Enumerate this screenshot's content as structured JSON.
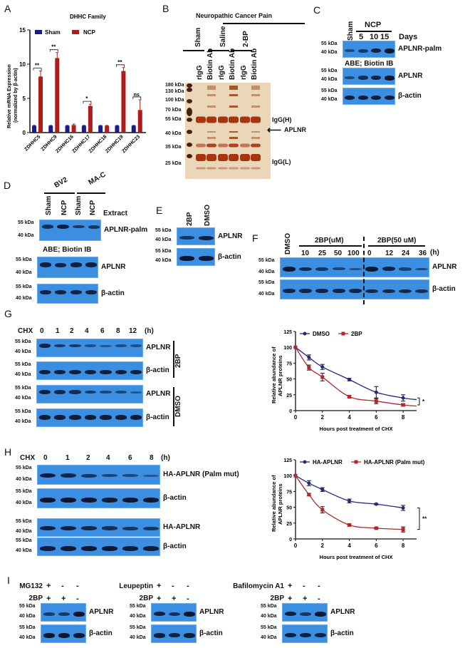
{
  "panels": {
    "A": "A",
    "B": "B",
    "C": "C",
    "D": "D",
    "E": "E",
    "F": "F",
    "G": "G",
    "H": "H",
    "I": "I"
  },
  "kda": {
    "k180": "180 kDa",
    "k130": "130 kDa",
    "k100": "100 kDa",
    "k70": "70 kDa",
    "k55": "55 kDa",
    "k40": "40 kDa",
    "k35": "35 kDa",
    "k25": "25 kDa"
  },
  "colors": {
    "sham": "#1a1a8c",
    "ncp": "#b01c1c",
    "dmso": "#1f2a80",
    "bp": "#b3262b",
    "blot": "#3b8ee0",
    "band": "#0b1530",
    "gel": "#e8cfa8"
  },
  "panel_b": {
    "title": "Neuropathic Cancer Pain",
    "groups": [
      "Sham",
      "Saline",
      "2-BP"
    ],
    "lanes": [
      "rIgG",
      "Biotin Ab",
      "rIgG",
      "Biotin Ab",
      "rIgG",
      "Biotin Ab"
    ],
    "right_labels": {
      "igg_h": "IgG(H)",
      "aplnr": "APLNR",
      "igg_l": "IgG(L)"
    }
  },
  "panel_c": {
    "sham": "Sham",
    "ncp": "NCP",
    "days": [
      "5",
      "10",
      "15"
    ],
    "days_label": "Days",
    "abe": "ABE; Biotin IB",
    "blots": [
      {
        "label": "APLNR-palm",
        "bands": [
          0.35,
          0.55,
          0.85,
          0.95
        ]
      },
      {
        "label": "APLNR",
        "bands": [
          0.35,
          0.7,
          0.8,
          0.95
        ]
      },
      {
        "label": "β-actin",
        "bands": [
          0.9,
          0.9,
          0.9,
          0.85
        ]
      }
    ]
  },
  "panel_d": {
    "groups": [
      "BV2",
      "MA-C"
    ],
    "lanes": [
      "Sham",
      "NCP",
      "Sham",
      "NCP"
    ],
    "extract": "Extract",
    "abe": "ABE; Biotin IB",
    "blots": [
      {
        "label": "APLNR-palm",
        "bands": [
          0.65,
          0.9,
          0.55,
          0.6
        ]
      },
      {
        "label": "APLNR",
        "bands": [
          0.85,
          0.8,
          0.85,
          0.85
        ]
      },
      {
        "label": "β-actin",
        "bands": [
          0.8,
          0.8,
          0.8,
          0.8
        ]
      }
    ]
  },
  "panel_e": {
    "lanes": [
      "2BP",
      "DMSO"
    ],
    "blots": [
      {
        "label": "APLNR",
        "bands": [
          0.6,
          0.85
        ]
      },
      {
        "label": "β-actin",
        "bands": [
          1,
          0.95
        ]
      }
    ]
  },
  "panel_f": {
    "dmso": "DMSO",
    "dose_title": "2BP(uM)",
    "time_title": "2BP(50 uM)",
    "doses": [
      "10",
      "25",
      "50",
      "100"
    ],
    "times": [
      "0",
      "12",
      "24",
      "36"
    ],
    "unit": "(h)",
    "blots": [
      {
        "label": "APLNR",
        "bands": [
          0.95,
          0.75,
          0.6,
          0.4,
          0.25,
          0.95,
          0.8,
          0.45,
          0.35
        ]
      },
      {
        "label": "β-actin",
        "bands": [
          0.8,
          0.8,
          0.8,
          0.8,
          0.8,
          0.75,
          0.75,
          0.75,
          0.7
        ]
      }
    ]
  },
  "panel_g": {
    "chx": "CHX",
    "times": [
      "0",
      "1",
      "2",
      "4",
      "6",
      "8",
      "12"
    ],
    "unit": "(h)",
    "group_2bp": "2BP",
    "group_dmso": "DMSO",
    "blots": [
      {
        "label": "APLNR",
        "bands": [
          0.8,
          0.55,
          0.55,
          0.25,
          0.2,
          0.3,
          0.25
        ]
      },
      {
        "label": "β-actin",
        "bands": [
          0.85,
          0.85,
          0.85,
          0.85,
          0.85,
          0.85,
          0.85
        ]
      },
      {
        "label": "APLNR",
        "bands": [
          0.85,
          0.75,
          0.7,
          0.55,
          0.4,
          0.4,
          0.2
        ]
      },
      {
        "label": "β-actin",
        "bands": [
          0.9,
          0.9,
          0.9,
          0.9,
          0.9,
          0.9,
          0.9
        ]
      }
    ]
  },
  "panel_h": {
    "chx": "CHX",
    "times": [
      "0",
      "1",
      "2",
      "4",
      "6",
      "8"
    ],
    "unit": "(h)",
    "blots": [
      {
        "label": "HA-APLNR (Palm mut)",
        "bands": [
          0.9,
          0.75,
          0.6,
          0.4,
          0.35,
          0.2
        ]
      },
      {
        "label": "β-actin",
        "bands": [
          1,
          1,
          0.95,
          0.9,
          0.95,
          0.95
        ]
      },
      {
        "label": "HA-APLNR",
        "bands": [
          0.85,
          0.85,
          0.75,
          0.65,
          0.6,
          0.6
        ]
      },
      {
        "label": "β-actin",
        "bands": [
          0.9,
          0.95,
          0.95,
          0.95,
          0.9,
          0.9
        ]
      }
    ]
  },
  "panel_i": [
    {
      "drug": "MG132",
      "drug_signs": [
        "+",
        "-",
        "-"
      ],
      "bp": "2BP",
      "bp_signs": [
        "+",
        "+",
        "-"
      ],
      "blots": [
        {
          "label": "APLNR",
          "bands": [
            0.5,
            0.55,
            1
          ]
        },
        {
          "label": "β-actin",
          "bands": [
            0.95,
            0.95,
            0.95
          ]
        }
      ]
    },
    {
      "drug": "Leupeptin",
      "drug_signs": [
        "+",
        "-",
        "-"
      ],
      "bp": "2BP",
      "bp_signs": [
        "+",
        "+",
        "-"
      ],
      "blots": [
        {
          "label": "APLNR",
          "bands": [
            0.85,
            0.65,
            0.95
          ]
        },
        {
          "label": "β-actin",
          "bands": [
            0.9,
            0.8,
            0.9
          ]
        }
      ]
    },
    {
      "drug": "Bafilomycin A1",
      "drug_signs": [
        "+",
        "-",
        "-"
      ],
      "bp": "2BP",
      "bp_signs": [
        "+",
        "+",
        "-"
      ],
      "blots": [
        {
          "label": "APLNR",
          "bands": [
            0.85,
            0.6,
            0.95
          ]
        },
        {
          "label": "β-actin",
          "bands": [
            0.85,
            0.85,
            0.85
          ]
        }
      ]
    }
  ],
  "chart_data": [
    {
      "type": "bar",
      "title": "DHHC Family",
      "ylabel": "Relative mRNA Expression (normalized by β-actin)",
      "ylabel_lines": [
        "Relative mRNA Expression",
        "(normalized by β-actin)"
      ],
      "ylim": [
        0,
        15
      ],
      "yticks": [
        "0",
        "5",
        "10",
        "15"
      ],
      "categories": [
        "ZDHHC5",
        "ZDHHC9",
        "ZDHHC16",
        "ZDHHC17",
        "ZDHHC18",
        "ZDHHC19",
        "ZDHHC23"
      ],
      "series": [
        {
          "name": "Sham",
          "values": [
            1,
            1,
            1,
            1,
            1,
            1,
            1
          ],
          "errors": [
            0.05,
            0.05,
            0.05,
            0.05,
            0.05,
            0.05,
            0.05
          ]
        },
        {
          "name": "NCP",
          "values": [
            8.2,
            10.9,
            1.1,
            3.9,
            1.0,
            9.0,
            3.3
          ],
          "errors": [
            0.8,
            0.8,
            0.15,
            0.25,
            0.05,
            0.5,
            1.5
          ]
        }
      ],
      "significance": [
        "**",
        "**",
        "",
        "*",
        "",
        "**",
        "ns"
      ],
      "legend": "top"
    },
    {
      "type": "line",
      "xlabel": "Hours post treatment of CHX",
      "ylabel_lines": [
        "Relative abundance of",
        "APLNR proteins"
      ],
      "xlim": [
        0,
        9
      ],
      "ylim": [
        0,
        125
      ],
      "xticks": [
        "0",
        "2",
        "4",
        "6",
        "8"
      ],
      "yticks": [
        "0",
        "25",
        "50",
        "75",
        "100",
        "125"
      ],
      "x": [
        0,
        1,
        2,
        4,
        6,
        8
      ],
      "series": [
        {
          "name": "DMSO",
          "marker": "circle",
          "values": [
            100,
            84,
            69,
            49,
            29,
            20
          ],
          "errors": [
            0,
            4,
            4,
            2,
            9,
            5
          ]
        },
        {
          "name": "2BP",
          "marker": "square",
          "values": [
            100,
            68,
            53,
            22,
            15,
            9
          ],
          "errors": [
            0,
            4,
            6,
            2,
            4,
            2
          ]
        }
      ],
      "significance": "*",
      "legend": "top"
    },
    {
      "type": "line",
      "xlabel": "Hours post treatment of CHX",
      "ylabel_lines": [
        "Relative abundance of",
        "APLNR proteins"
      ],
      "xlim": [
        0,
        9
      ],
      "ylim": [
        0,
        125
      ],
      "xticks": [
        "0",
        "2",
        "4",
        "6",
        "8"
      ],
      "yticks": [
        "0",
        "25",
        "50",
        "75",
        "100",
        "125"
      ],
      "x": [
        0,
        1,
        2,
        4,
        6,
        8
      ],
      "series": [
        {
          "name": "HA-APLNR",
          "marker": "circle",
          "values": [
            100,
            88,
            78,
            60,
            55,
            49
          ],
          "errors": [
            0,
            4,
            3,
            3,
            1,
            4
          ]
        },
        {
          "name": "HA-APLNR (Palm mut)",
          "marker": "square",
          "values": [
            100,
            70,
            46,
            22,
            17,
            15
          ],
          "errors": [
            0,
            2,
            5,
            1,
            1,
            4
          ]
        }
      ],
      "significance": "**",
      "legend": "top"
    }
  ]
}
